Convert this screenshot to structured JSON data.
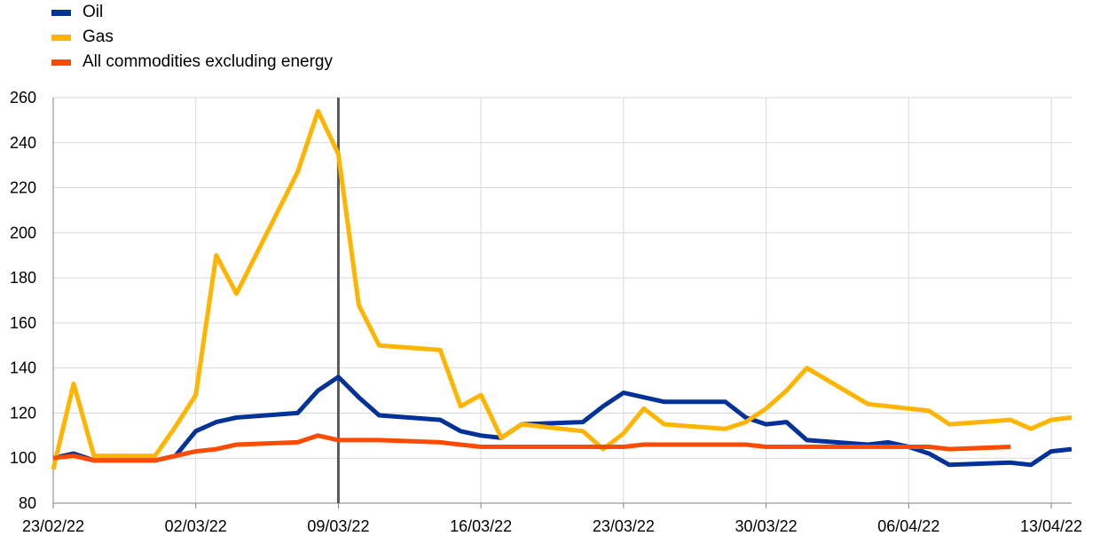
{
  "chart_data": {
    "type": "line",
    "title": "",
    "xlabel": "",
    "ylabel": "",
    "ylim": [
      80,
      260
    ],
    "yticks": [
      80,
      100,
      120,
      140,
      160,
      180,
      200,
      220,
      240,
      260
    ],
    "xticks": [
      "23/02/22",
      "02/03/22",
      "09/03/22",
      "16/03/22",
      "23/03/22",
      "30/03/22",
      "06/04/22",
      "13/04/22"
    ],
    "grid": true,
    "legend_position": "top-left",
    "vertical_marker": "09/03/22",
    "series": [
      {
        "name": "Oil",
        "color": "#003299",
        "points": [
          [
            "23/02/22",
            100
          ],
          [
            "24/02/22",
            102
          ],
          [
            "25/02/22",
            99
          ],
          [
            "28/02/22",
            99
          ],
          [
            "01/03/22",
            101
          ],
          [
            "02/03/22",
            112
          ],
          [
            "03/03/22",
            116
          ],
          [
            "04/03/22",
            118
          ],
          [
            "07/03/22",
            120
          ],
          [
            "08/03/22",
            130
          ],
          [
            "09/03/22",
            136
          ],
          [
            "10/03/22",
            127
          ],
          [
            "11/03/22",
            119
          ],
          [
            "14/03/22",
            117
          ],
          [
            "15/03/22",
            112
          ],
          [
            "16/03/22",
            110
          ],
          [
            "17/03/22",
            109
          ],
          [
            "18/03/22",
            115
          ],
          [
            "21/03/22",
            116
          ],
          [
            "22/03/22",
            123
          ],
          [
            "23/03/22",
            129
          ],
          [
            "24/03/22",
            127
          ],
          [
            "25/03/22",
            125
          ],
          [
            "28/03/22",
            125
          ],
          [
            "29/03/22",
            118
          ],
          [
            "30/03/22",
            115
          ],
          [
            "31/03/22",
            116
          ],
          [
            "01/04/22",
            108
          ],
          [
            "04/04/22",
            106
          ],
          [
            "05/04/22",
            107
          ],
          [
            "06/04/22",
            105
          ],
          [
            "07/04/22",
            102
          ],
          [
            "08/04/22",
            97
          ],
          [
            "11/04/22",
            98
          ],
          [
            "12/04/22",
            97
          ],
          [
            "13/04/22",
            103
          ],
          [
            "14/04/22",
            104
          ]
        ]
      },
      {
        "name": "Gas",
        "color": "#ffb400",
        "points": [
          [
            "23/02/22",
            95
          ],
          [
            "24/02/22",
            133
          ],
          [
            "25/02/22",
            101
          ],
          [
            "28/02/22",
            101
          ],
          [
            "01/03/22",
            114
          ],
          [
            "02/03/22",
            128
          ],
          [
            "03/03/22",
            190
          ],
          [
            "04/03/22",
            173
          ],
          [
            "07/03/22",
            227
          ],
          [
            "08/03/22",
            254
          ],
          [
            "09/03/22",
            235
          ],
          [
            "10/03/22",
            168
          ],
          [
            "11/03/22",
            150
          ],
          [
            "14/03/22",
            148
          ],
          [
            "15/03/22",
            123
          ],
          [
            "16/03/22",
            128
          ],
          [
            "17/03/22",
            109
          ],
          [
            "18/03/22",
            115
          ],
          [
            "21/03/22",
            112
          ],
          [
            "22/03/22",
            104
          ],
          [
            "23/03/22",
            111
          ],
          [
            "24/03/22",
            122
          ],
          [
            "25/03/22",
            115
          ],
          [
            "28/03/22",
            113
          ],
          [
            "29/03/22",
            116
          ],
          [
            "30/03/22",
            122
          ],
          [
            "31/03/22",
            130
          ],
          [
            "01/04/22",
            140
          ],
          [
            "04/04/22",
            124
          ],
          [
            "05/04/22",
            123
          ],
          [
            "06/04/22",
            122
          ],
          [
            "07/04/22",
            121
          ],
          [
            "08/04/22",
            115
          ],
          [
            "11/04/22",
            117
          ],
          [
            "12/04/22",
            113
          ],
          [
            "13/04/22",
            117
          ],
          [
            "14/04/22",
            118
          ]
        ]
      },
      {
        "name": "All commodities excluding energy",
        "color": "#ff4b00",
        "points": [
          [
            "23/02/22",
            100
          ],
          [
            "24/02/22",
            101
          ],
          [
            "25/02/22",
            99
          ],
          [
            "28/02/22",
            99
          ],
          [
            "01/03/22",
            101
          ],
          [
            "02/03/22",
            103
          ],
          [
            "03/03/22",
            104
          ],
          [
            "04/03/22",
            106
          ],
          [
            "07/03/22",
            107
          ],
          [
            "08/03/22",
            110
          ],
          [
            "09/03/22",
            108
          ],
          [
            "10/03/22",
            108
          ],
          [
            "11/03/22",
            108
          ],
          [
            "14/03/22",
            107
          ],
          [
            "15/03/22",
            106
          ],
          [
            "16/03/22",
            105
          ],
          [
            "17/03/22",
            105
          ],
          [
            "18/03/22",
            105
          ],
          [
            "21/03/22",
            105
          ],
          [
            "22/03/22",
            105
          ],
          [
            "23/03/22",
            105
          ],
          [
            "24/03/22",
            106
          ],
          [
            "25/03/22",
            106
          ],
          [
            "28/03/22",
            106
          ],
          [
            "29/03/22",
            106
          ],
          [
            "30/03/22",
            105
          ],
          [
            "31/03/22",
            105
          ],
          [
            "01/04/22",
            105
          ],
          [
            "04/04/22",
            105
          ],
          [
            "05/04/22",
            105
          ],
          [
            "06/04/22",
            105
          ],
          [
            "07/04/22",
            105
          ],
          [
            "08/04/22",
            104
          ],
          [
            "11/04/22",
            105
          ]
        ]
      }
    ]
  }
}
